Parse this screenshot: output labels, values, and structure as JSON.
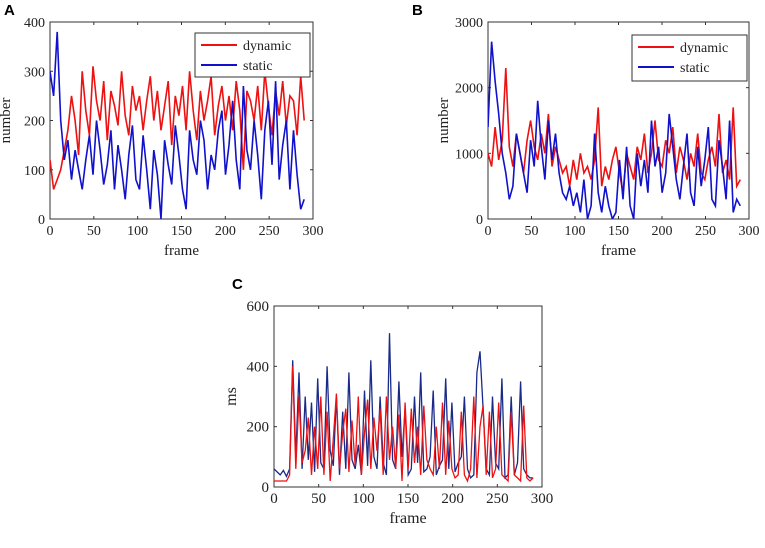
{
  "panels": [
    {
      "label": "A"
    },
    {
      "label": "B"
    },
    {
      "label": "C"
    }
  ],
  "colors": {
    "dynamic": "#ee1111",
    "static": "#1111cc",
    "static_c": "#1a2a88",
    "axis": "#333333"
  },
  "chart_data": [
    {
      "type": "line",
      "panel": "A",
      "xlabel": "frame",
      "ylabel": "number",
      "xlim": [
        0,
        300
      ],
      "ylim": [
        0,
        400
      ],
      "xticks": [
        0,
        50,
        100,
        150,
        200,
        250,
        300
      ],
      "yticks": [
        0,
        100,
        200,
        300,
        400
      ],
      "legend_position": "top-right",
      "series": [
        {
          "name": "dynamic",
          "color": "#ee1111",
          "y": [
            120,
            60,
            80,
            100,
            140,
            180,
            250,
            200,
            130,
            300,
            220,
            170,
            310,
            240,
            200,
            280,
            160,
            260,
            230,
            190,
            300,
            210,
            170,
            270,
            220,
            250,
            180,
            240,
            290,
            200,
            260,
            180,
            230,
            280,
            150,
            250,
            210,
            270,
            180,
            300,
            220,
            160,
            260,
            200,
            240,
            290,
            170,
            230,
            270,
            200,
            250,
            180,
            280,
            220,
            100,
            260,
            240,
            200,
            270,
            180,
            300,
            230,
            170,
            260,
            210,
            280,
            190,
            250,
            240,
            170,
            290,
            200
          ]
        },
        {
          "name": "static",
          "color": "#1111cc",
          "y": [
            300,
            250,
            380,
            200,
            120,
            160,
            80,
            140,
            100,
            60,
            120,
            170,
            90,
            200,
            140,
            70,
            110,
            180,
            60,
            150,
            100,
            40,
            130,
            190,
            80,
            60,
            170,
            100,
            20,
            140,
            90,
            0,
            160,
            110,
            70,
            190,
            130,
            60,
            20,
            180,
            120,
            90,
            200,
            160,
            60,
            130,
            100,
            180,
            220,
            90,
            150,
            240,
            120,
            60,
            270,
            140,
            100,
            200,
            130,
            40,
            180,
            240,
            110,
            280,
            80,
            150,
            200,
            60,
            180,
            90,
            20,
            40
          ]
        }
      ]
    },
    {
      "type": "line",
      "panel": "B",
      "xlabel": "frame",
      "ylabel": "number",
      "xlim": [
        0,
        300
      ],
      "ylim": [
        0,
        3000
      ],
      "xticks": [
        0,
        50,
        100,
        150,
        200,
        250,
        300
      ],
      "yticks": [
        0,
        1000,
        2000,
        3000
      ],
      "legend_position": "top-right",
      "series": [
        {
          "name": "dynamic",
          "color": "#ee1111",
          "y": [
            1000,
            800,
            1400,
            900,
            1200,
            2300,
            1100,
            800,
            1300,
            1000,
            700,
            1200,
            1500,
            1100,
            900,
            1300,
            1000,
            1600,
            800,
            1100,
            900,
            700,
            800,
            500,
            900,
            600,
            1000,
            700,
            800,
            600,
            900,
            1700,
            500,
            800,
            600,
            900,
            1100,
            700,
            400,
            1000,
            800,
            600,
            1100,
            900,
            1300,
            700,
            1000,
            1500,
            900,
            800,
            1200,
            1000,
            1400,
            700,
            1100,
            900,
            600,
            1000,
            800,
            1300,
            700,
            600,
            900,
            1100,
            800,
            1600,
            700,
            900,
            600,
            1700,
            500,
            600
          ]
        },
        {
          "name": "static",
          "color": "#1111cc",
          "y": [
            1400,
            2700,
            2100,
            1600,
            1000,
            700,
            300,
            500,
            1300,
            1000,
            700,
            400,
            1200,
            800,
            1800,
            1100,
            600,
            1500,
            900,
            1300,
            700,
            400,
            300,
            500,
            200,
            400,
            100,
            600,
            0,
            200,
            1300,
            400,
            100,
            500,
            200,
            0,
            100,
            900,
            300,
            1100,
            200,
            0,
            1000,
            500,
            900,
            400,
            1500,
            800,
            1100,
            400,
            700,
            1600,
            1100,
            600,
            300,
            800,
            1300,
            400,
            200,
            1100,
            500,
            900,
            1400,
            300,
            200,
            1200,
            800,
            300,
            1500,
            100,
            300,
            200
          ]
        }
      ]
    },
    {
      "type": "line",
      "panel": "C",
      "xlabel": "frame",
      "ylabel": "ms",
      "xlim": [
        0,
        300
      ],
      "ylim": [
        0,
        600
      ],
      "xticks": [
        0,
        50,
        100,
        150,
        200,
        250,
        300
      ],
      "yticks": [
        0,
        200,
        400,
        600
      ],
      "series": [
        {
          "name": "static",
          "color": "#1a2a88",
          "y": [
            60,
            50,
            40,
            55,
            35,
            60,
            420,
            100,
            380,
            60,
            300,
            90,
            280,
            50,
            360,
            80,
            60,
            400,
            120,
            70,
            300,
            40,
            250,
            60,
            380,
            90,
            60,
            140,
            40,
            320,
            70,
            420,
            100,
            60,
            300,
            80,
            40,
            510,
            90,
            60,
            350,
            100,
            260,
            40,
            60,
            300,
            80,
            380,
            50,
            60,
            100,
            320,
            40,
            70,
            90,
            360,
            60,
            280,
            50,
            80,
            100,
            300,
            60,
            30,
            40,
            380,
            450,
            260,
            60,
            40,
            300,
            80,
            60,
            360,
            30,
            40,
            300,
            40,
            80,
            350,
            60,
            40,
            30,
            30
          ]
        },
        {
          "name": "dynamic",
          "color": "#ee1111",
          "y": [
            20,
            20,
            20,
            20,
            20,
            40,
            400,
            60,
            300,
            80,
            120,
            230,
            40,
            200,
            60,
            300,
            40,
            250,
            20,
            160,
            310,
            60,
            180,
            260,
            50,
            220,
            70,
            300,
            40,
            180,
            290,
            60,
            230,
            120,
            260,
            40,
            300,
            90,
            200,
            60,
            240,
            20,
            280,
            60,
            260,
            80,
            200,
            40,
            270,
            90,
            60,
            40,
            200,
            60,
            280,
            40,
            220,
            60,
            30,
            40,
            250,
            40,
            20,
            60,
            300,
            30,
            200,
            270,
            40,
            250,
            30,
            60,
            280,
            40,
            30,
            20,
            250,
            40,
            30,
            20,
            270,
            30,
            20,
            30
          ]
        }
      ]
    }
  ]
}
